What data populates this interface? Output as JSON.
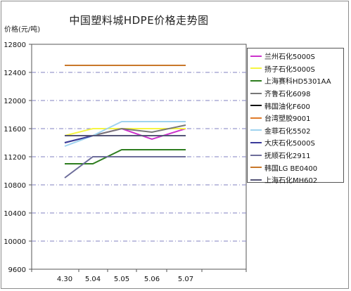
{
  "chart_data": {
    "type": "line",
    "title": "中国塑料城HDPE价格走势图",
    "ylabel": "价格(元/吨)",
    "xlabel": "",
    "categories": [
      "4.30",
      "5.04",
      "5.05",
      "5.06",
      "5.07"
    ],
    "ylim": [
      9600,
      12800
    ],
    "yticks": [
      12800,
      12400,
      12000,
      11600,
      11200,
      10800,
      10400,
      10000,
      9600
    ],
    "grid": true,
    "legend": "right",
    "series": [
      {
        "name": "兰州石化5000S",
        "color": "#cc33cc",
        "values": [
          11500,
          11500,
          11600,
          11450,
          11600
        ]
      },
      {
        "name": "扬子石化5000S",
        "color": "#f5f542",
        "values": [
          11500,
          11600,
          11600,
          11600,
          11600
        ]
      },
      {
        "name": "上海赛科HD5301AA",
        "color": "#2e7d1f",
        "values": [
          11100,
          11100,
          11300,
          11300,
          11300
        ]
      },
      {
        "name": "齐鲁石化6098",
        "color": "#777777",
        "values": [
          11400,
          11500,
          11600,
          11550,
          11650
        ]
      },
      {
        "name": "韩国油化F600",
        "color": "#111111",
        "values": [
          11500,
          11500,
          11500,
          11500,
          11500
        ]
      },
      {
        "name": "台湾塑胶9001",
        "color": "#e07b2a",
        "values": [
          11500,
          11500,
          11500,
          11500,
          11500
        ]
      },
      {
        "name": "金菲石化5502",
        "color": "#9fd3ef",
        "values": [
          11350,
          11500,
          11700,
          11700,
          11700
        ]
      },
      {
        "name": "大庆石化5000S",
        "color": "#3a3a9a",
        "values": [
          11400,
          11500,
          11500,
          11500,
          11500
        ]
      },
      {
        "name": "抚顺石化2911",
        "color": "#6d6d9a",
        "values": [
          10900,
          11200,
          11200,
          11200,
          11200
        ]
      },
      {
        "name": "韩国LG BE0400",
        "color": "#c8782a",
        "values": [
          12500,
          12500,
          12500,
          12500,
          12500
        ]
      },
      {
        "name": "上海石化MH602",
        "color": "#555577",
        "values": [
          11500,
          11500,
          11500,
          11500,
          11500
        ]
      }
    ]
  }
}
